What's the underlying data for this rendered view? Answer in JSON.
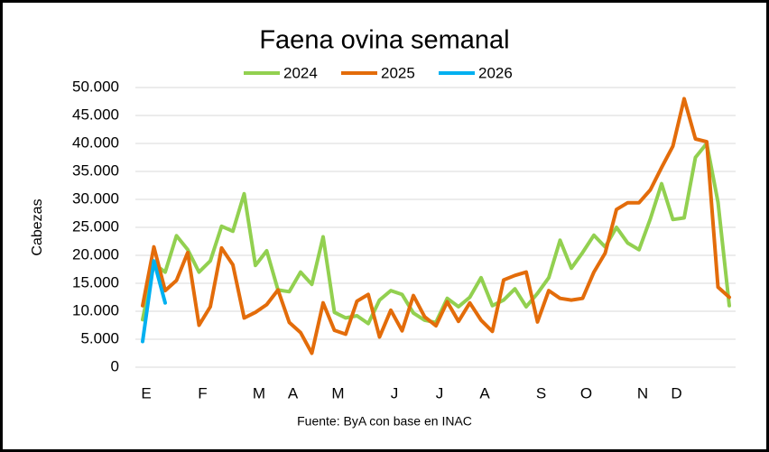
{
  "chart_data": {
    "type": "line",
    "title": "Faena ovina semanal",
    "y_label": "Cabezas",
    "source": "Fuente: ByA con base en INAC",
    "categories": [
      "E",
      null,
      null,
      null,
      null,
      "F",
      null,
      null,
      null,
      null,
      "M",
      null,
      null,
      "A",
      null,
      null,
      null,
      "M",
      null,
      null,
      null,
      null,
      "J",
      null,
      null,
      null,
      "J",
      null,
      null,
      null,
      "A",
      null,
      null,
      null,
      null,
      "S",
      null,
      null,
      null,
      "O",
      null,
      null,
      null,
      null,
      "N",
      null,
      null,
      "D",
      null,
      null,
      null,
      null,
      null
    ],
    "series": [
      {
        "name": "2024",
        "color": "#92d050",
        "values": [
          8500,
          18500,
          17000,
          23500,
          21000,
          17000,
          19000,
          25200,
          24300,
          31000,
          18200,
          20800,
          13800,
          13500,
          17000,
          14800,
          23300,
          9800,
          8800,
          9200,
          7800,
          12000,
          13700,
          13000,
          9700,
          8400,
          8000,
          12300,
          10800,
          12500,
          16000,
          11000,
          12000,
          14000,
          10800,
          13200,
          16000,
          22700,
          17700,
          20500,
          23600,
          21500,
          25000,
          22200,
          21000,
          26500,
          32800,
          26400,
          26700,
          37500,
          40000,
          29500,
          11000
        ]
      },
      {
        "name": "2025",
        "color": "#e36c0a",
        "values": [
          11000,
          21500,
          13700,
          15500,
          20500,
          7500,
          10800,
          21300,
          18300,
          8800,
          9800,
          11200,
          13800,
          8000,
          6200,
          2500,
          11500,
          6600,
          5900,
          11800,
          13000,
          5400,
          10200,
          6500,
          12800,
          9000,
          7400,
          11700,
          8200,
          11500,
          8400,
          6400,
          15600,
          16400,
          17000,
          8100,
          13700,
          12300,
          12000,
          12300,
          17000,
          20400,
          28200,
          29400,
          29400,
          31700,
          35700,
          39500,
          48000,
          40800,
          40300,
          14300,
          12500
        ]
      },
      {
        "name": "2026",
        "color": "#00b0f0",
        "values": [
          4600,
          19000,
          11500,
          null,
          null,
          null,
          null,
          null,
          null,
          null,
          null,
          null,
          null,
          null,
          null,
          null,
          null,
          null,
          null,
          null,
          null,
          null,
          null,
          null,
          null,
          null,
          null,
          null,
          null,
          null,
          null,
          null,
          null,
          null,
          null,
          null,
          null,
          null,
          null,
          null,
          null,
          null,
          null,
          null,
          null,
          null,
          null,
          null,
          null,
          null,
          null,
          null,
          null
        ]
      }
    ],
    "ylim": [
      0,
      50000
    ],
    "yticks": [
      0,
      {
        "value": 5000,
        "label": "5.000"
      },
      {
        "value": 10000,
        "label": "10.000"
      },
      {
        "value": 15000,
        "label": "15.000"
      },
      {
        "value": 20000,
        "label": "20.000"
      },
      {
        "value": 25000,
        "label": "25.000"
      },
      {
        "value": 30000,
        "label": "30.000"
      },
      {
        "value": 35000,
        "label": "35.000"
      },
      {
        "value": 40000,
        "label": "40.000"
      },
      {
        "value": 45000,
        "label": "45.000"
      },
      {
        "value": 50000,
        "label": "50.000"
      }
    ],
    "grid": true
  }
}
